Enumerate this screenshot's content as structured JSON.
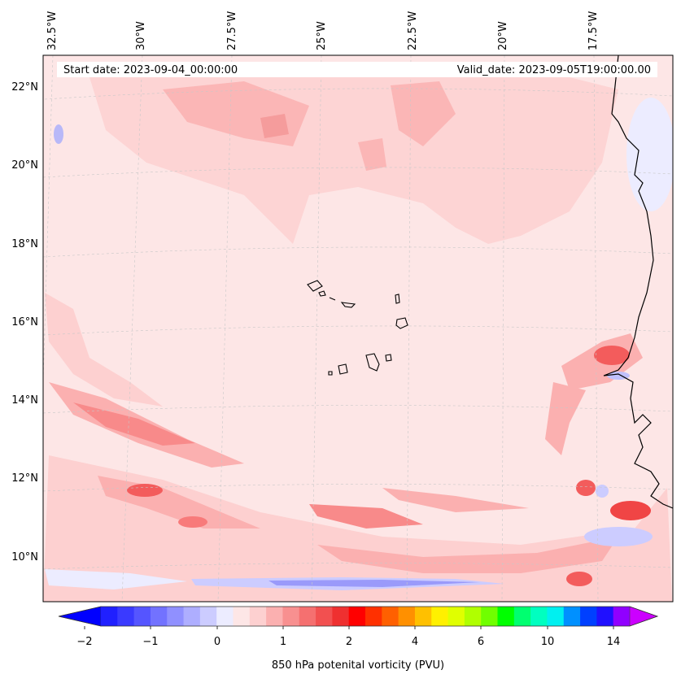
{
  "map": {
    "start_date": "Start date: 2023-09-04_00:00:00",
    "valid_date": "Valid_date: 2023-09-05T19:00:00.00",
    "lon_labels": [
      "32.5°W",
      "30°W",
      "27.5°W",
      "25°W",
      "22.5°W",
      "20°W",
      "17.5°W"
    ],
    "lat_labels": [
      "22°N",
      "20°N",
      "18°N",
      "16°N",
      "14°N",
      "12°N",
      "10°N"
    ],
    "colorbar_label": "850 hPa potenital vorticity (PVU)",
    "colorbar_ticks": [
      "−2",
      "−1",
      "0",
      "1",
      "2",
      "4",
      "6",
      "10",
      "14"
    ],
    "colors": {
      "background_pink": "#fde6e6",
      "light_pink": "#fdd0d0",
      "mid_pink": "#fbb0b0",
      "red": "#f88080",
      "strong_red": "#f04545",
      "light_blue": "#e8e8ff",
      "blue": "#9a9afa",
      "coast": "#000000"
    }
  }
}
